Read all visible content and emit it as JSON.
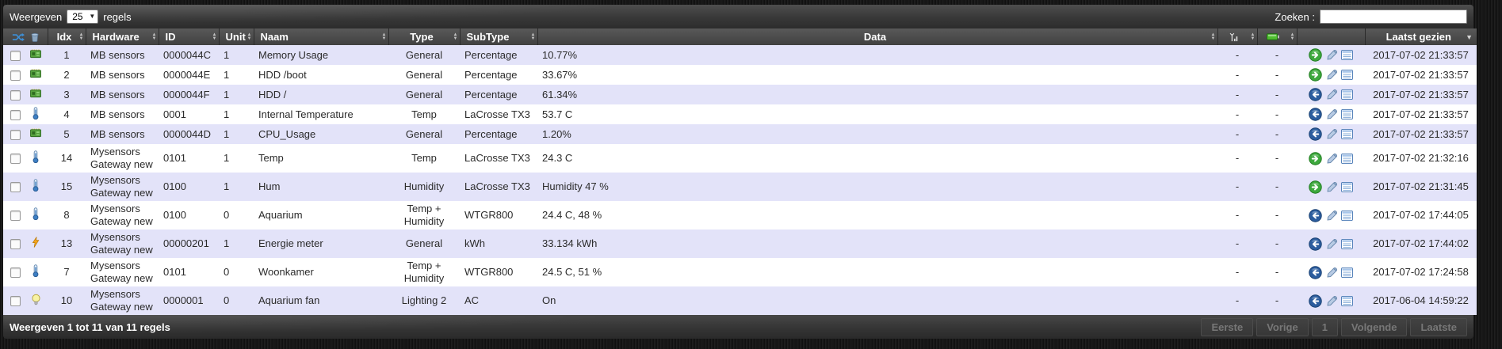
{
  "toolbar": {
    "show_label": "Weergeven",
    "page_size": "25",
    "rows_label": "regels",
    "search_label": "Zoeken :",
    "search_value": ""
  },
  "table": {
    "headers": {
      "idx": "Idx",
      "hardware": "Hardware",
      "id": "ID",
      "unit": "Unit",
      "naam": "Naam",
      "type": "Type",
      "subtype": "SubType",
      "data": "Data",
      "laatst_gezien": "Laatst gezien"
    },
    "header_icons": {
      "bulk": [
        "swap-icon",
        "trash-icon"
      ],
      "signal": "signal-strength-icon",
      "battery": "battery-icon"
    },
    "rows": [
      {
        "idx": "1",
        "hardware": "MB sensors",
        "id": "0000044C",
        "unit": "1",
        "naam": "Memory Usage",
        "type": "General",
        "subtype": "Percentage",
        "data": "10.77%",
        "signal": "-",
        "battery": "-",
        "laatst": "2017-07-02 21:33:57",
        "device_icon": "memory-chip-icon",
        "arrow_icon": "arrow-right-green-icon"
      },
      {
        "idx": "2",
        "hardware": "MB sensors",
        "id": "0000044E",
        "unit": "1",
        "naam": "HDD /boot",
        "type": "General",
        "subtype": "Percentage",
        "data": "33.67%",
        "signal": "-",
        "battery": "-",
        "laatst": "2017-07-02 21:33:57",
        "device_icon": "memory-chip-icon",
        "arrow_icon": "arrow-right-green-icon"
      },
      {
        "idx": "3",
        "hardware": "MB sensors",
        "id": "0000044F",
        "unit": "1",
        "naam": "HDD /",
        "type": "General",
        "subtype": "Percentage",
        "data": "61.34%",
        "signal": "-",
        "battery": "-",
        "laatst": "2017-07-02 21:33:57",
        "device_icon": "memory-chip-icon",
        "arrow_icon": "arrow-left-blue-icon"
      },
      {
        "idx": "4",
        "hardware": "MB sensors",
        "id": "0001",
        "unit": "1",
        "naam": "Internal Temperature",
        "type": "Temp",
        "subtype": "LaCrosse TX3",
        "data": "53.7 C",
        "signal": "-",
        "battery": "-",
        "laatst": "2017-07-02 21:33:57",
        "device_icon": "thermometer-icon",
        "arrow_icon": "arrow-left-blue-icon"
      },
      {
        "idx": "5",
        "hardware": "MB sensors",
        "id": "0000044D",
        "unit": "1",
        "naam": "CPU_Usage",
        "type": "General",
        "subtype": "Percentage",
        "data": "1.20%",
        "signal": "-",
        "battery": "-",
        "laatst": "2017-07-02 21:33:57",
        "device_icon": "memory-chip-icon",
        "arrow_icon": "arrow-left-blue-icon"
      },
      {
        "idx": "14",
        "hardware": "Mysensors Gateway new",
        "id": "0101",
        "unit": "1",
        "naam": "Temp",
        "type": "Temp",
        "subtype": "LaCrosse TX3",
        "data": "24.3 C",
        "signal": "-",
        "battery": "-",
        "laatst": "2017-07-02 21:32:16",
        "device_icon": "thermometer-icon",
        "arrow_icon": "arrow-right-green-icon"
      },
      {
        "idx": "15",
        "hardware": "Mysensors Gateway new",
        "id": "0100",
        "unit": "1",
        "naam": "Hum",
        "type": "Humidity",
        "subtype": "LaCrosse TX3",
        "data": "Humidity 47 %",
        "signal": "-",
        "battery": "-",
        "laatst": "2017-07-02 21:31:45",
        "device_icon": "thermometer-icon",
        "arrow_icon": "arrow-right-green-icon"
      },
      {
        "idx": "8",
        "hardware": "Mysensors Gateway new",
        "id": "0100",
        "unit": "0",
        "naam": "Aquarium",
        "type": "Temp + Humidity",
        "subtype": "WTGR800",
        "data": "24.4 C, 48 %",
        "signal": "-",
        "battery": "-",
        "laatst": "2017-07-02 17:44:05",
        "device_icon": "thermometer-icon",
        "arrow_icon": "arrow-left-blue-icon"
      },
      {
        "idx": "13",
        "hardware": "Mysensors Gateway new",
        "id": "00000201",
        "unit": "1",
        "naam": "Energie meter",
        "type": "General",
        "subtype": "kWh",
        "data": "33.134 kWh",
        "signal": "-",
        "battery": "-",
        "laatst": "2017-07-02 17:44:02",
        "device_icon": "lightning-bolt-icon",
        "arrow_icon": "arrow-left-blue-icon"
      },
      {
        "idx": "7",
        "hardware": "Mysensors Gateway new",
        "id": "0101",
        "unit": "0",
        "naam": "Woonkamer",
        "type": "Temp + Humidity",
        "subtype": "WTGR800",
        "data": "24.5 C, 51 %",
        "signal": "-",
        "battery": "-",
        "laatst": "2017-07-02 17:24:58",
        "device_icon": "thermometer-icon",
        "arrow_icon": "arrow-left-blue-icon"
      },
      {
        "idx": "10",
        "hardware": "Mysensors Gateway new",
        "id": "0000001",
        "unit": "0",
        "naam": "Aquarium fan",
        "type": "Lighting 2",
        "subtype": "AC",
        "data": "On",
        "signal": "-",
        "battery": "-",
        "laatst": "2017-06-04 14:59:22",
        "device_icon": "lightbulb-icon",
        "arrow_icon": "arrow-left-blue-icon"
      }
    ]
  },
  "footer": {
    "info": "Weergeven 1 tot 11 van 11 regels",
    "pagination": [
      "Eerste",
      "Vorige",
      "1",
      "Volgende",
      "Laatste"
    ]
  },
  "colors": {
    "row_stripe": "#e3e3f9",
    "row_plain": "#ffffff",
    "green_action": "#3da83d",
    "blue_action": "#2c5d9e",
    "battery_green": "#4fbf2f",
    "bolt_orange": "#f7a61b",
    "chip_green": "#56a13f"
  }
}
